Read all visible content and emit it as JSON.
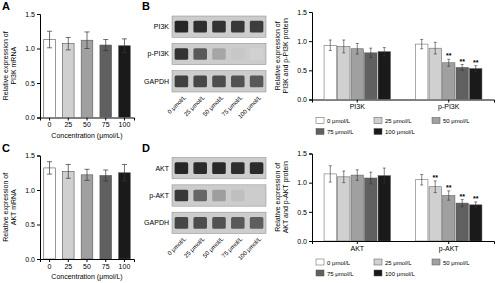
{
  "chart_data": [
    {
      "type": "bar",
      "title": "A",
      "ylabel": "Relative expression of\nPI3K mRNA",
      "xlabel": "Concentration (μmol/L)",
      "categories": [
        "0",
        "25",
        "50",
        "75",
        "100"
      ],
      "values": [
        1.13,
        1.07,
        1.12,
        1.05,
        1.04
      ],
      "errors": [
        0.12,
        0.09,
        0.12,
        0.08,
        0.1
      ],
      "colors": [
        "#ffffff",
        "#d0d0d0",
        "#a0a0a0",
        "#606060",
        "#1a1a1a"
      ],
      "ylim": [
        0.0,
        1.5
      ],
      "yticks": [
        {
          "value": 0.0,
          "label": "0.0"
        },
        {
          "value": 0.5,
          "label": "0.5"
        },
        {
          "value": 1.0,
          "label": "1.0"
        },
        {
          "value": 1.5,
          "label": "1.5"
        }
      ]
    },
    {
      "type": "blot",
      "title": "B",
      "rows": [
        "PI3K",
        "p-PI3K",
        "GAPDH"
      ],
      "categories": [
        "0 μmol/L",
        "25 μmol/L",
        "50 μmol/L",
        "75 μmol/L",
        "100 μmol/L"
      ],
      "cells": [
        [
          0.85,
          0.82,
          0.8,
          0.78,
          0.76
        ],
        [
          0.8,
          0.65,
          0.35,
          0.22,
          0.18
        ],
        [
          0.75,
          0.72,
          0.7,
          0.68,
          0.65
        ]
      ]
    },
    {
      "type": "bar",
      "ylabel": "Relative expression of\nPI3K and p-PI3K protein",
      "categories": [
        "PI3K",
        "p-PI3K"
      ],
      "series": [
        {
          "name": "0 μmol/L",
          "color": "#ffffff",
          "values": [
            0.93,
            0.95
          ],
          "errors": [
            0.09,
            0.08
          ],
          "annotations": [
            null,
            null
          ]
        },
        {
          "name": "25 μmol/L",
          "color": "#d0d0d0",
          "values": [
            0.91,
            0.88
          ],
          "errors": [
            0.11,
            0.1
          ],
          "annotations": [
            null,
            null
          ]
        },
        {
          "name": "50 μmol/L",
          "color": "#a0a0a0",
          "values": [
            0.87,
            0.63
          ],
          "errors": [
            0.09,
            0.06
          ],
          "annotations": [
            null,
            "**"
          ]
        },
        {
          "name": "75 μmol/L",
          "color": "#606060",
          "values": [
            0.8,
            0.55
          ],
          "errors": [
            0.08,
            0.05
          ],
          "annotations": [
            null,
            "**"
          ]
        },
        {
          "name": "100 μmol/L",
          "color": "#1a1a1a",
          "values": [
            0.82,
            0.53
          ],
          "errors": [
            0.07,
            0.05
          ],
          "annotations": [
            null,
            "**"
          ]
        }
      ],
      "ylim": [
        0.0,
        1.5
      ],
      "yticks": [
        {
          "value": 0.0,
          "label": "0.0"
        },
        {
          "value": 0.5,
          "label": "0.5"
        },
        {
          "value": 1.0,
          "label": "1.0"
        },
        {
          "value": 1.5,
          "label": "1.5"
        }
      ],
      "legend": "bottom"
    },
    {
      "type": "bar",
      "title": "C",
      "ylabel": "Relative expression of\nAKT mRNA",
      "xlabel": "Concentration (μmol/L)",
      "categories": [
        "0",
        "25",
        "50",
        "75",
        "100"
      ],
      "values": [
        1.32,
        1.27,
        1.22,
        1.21,
        1.25
      ],
      "errors": [
        0.09,
        0.1,
        0.08,
        0.08,
        0.12
      ],
      "colors": [
        "#ffffff",
        "#d0d0d0",
        "#a0a0a0",
        "#606060",
        "#1a1a1a"
      ],
      "ylim": [
        0.0,
        1.5
      ],
      "yticks": [
        {
          "value": 0.0,
          "label": "0.0"
        },
        {
          "value": 0.5,
          "label": "0.5"
        },
        {
          "value": 1.0,
          "label": "1.0"
        },
        {
          "value": 1.5,
          "label": "1.5"
        }
      ]
    },
    {
      "type": "blot",
      "title": "D",
      "rows": [
        "AKT",
        "p-AKT",
        "GAPDH"
      ],
      "categories": [
        "0 μmol/L",
        "25 μmol/L",
        "50 μmol/L",
        "75 μmol/L",
        "100 μmol/L"
      ],
      "cells": [
        [
          0.85,
          0.83,
          0.84,
          0.82,
          0.83
        ],
        [
          0.78,
          0.6,
          0.38,
          0.25,
          0.2
        ],
        [
          0.72,
          0.7,
          0.68,
          0.65,
          0.63
        ]
      ]
    },
    {
      "type": "bar",
      "ylabel": "Relative expression of\nAKT and p-AKT protein",
      "categories": [
        "AKT",
        "p-AKT"
      ],
      "series": [
        {
          "name": "0 μmol/L",
          "color": "#ffffff",
          "values": [
            1.15,
            1.05
          ],
          "errors": [
            0.14,
            0.09
          ],
          "annotations": [
            null,
            null
          ]
        },
        {
          "name": "25 μmol/L",
          "color": "#d0d0d0",
          "values": [
            1.1,
            0.93
          ],
          "errors": [
            0.1,
            0.1
          ],
          "annotations": [
            null,
            "**"
          ]
        },
        {
          "name": "50 μmol/L",
          "color": "#a0a0a0",
          "values": [
            1.13,
            0.78
          ],
          "errors": [
            0.09,
            0.08
          ],
          "annotations": [
            null,
            "**"
          ]
        },
        {
          "name": "75 μmol/L",
          "color": "#606060",
          "values": [
            1.08,
            0.65
          ],
          "errors": [
            0.1,
            0.06
          ],
          "annotations": [
            null,
            "**"
          ]
        },
        {
          "name": "100 μmol/L",
          "color": "#1a1a1a",
          "values": [
            1.12,
            0.62
          ],
          "errors": [
            0.13,
            0.05
          ],
          "annotations": [
            null,
            "**"
          ]
        }
      ],
      "ylim": [
        0.0,
        1.5
      ],
      "yticks": [
        {
          "value": 0.0,
          "label": "0.0"
        },
        {
          "value": 0.5,
          "label": "0.5"
        },
        {
          "value": 1.0,
          "label": "1.0"
        },
        {
          "value": 1.5,
          "label": "1.5"
        }
      ],
      "legend": "bottom"
    }
  ]
}
